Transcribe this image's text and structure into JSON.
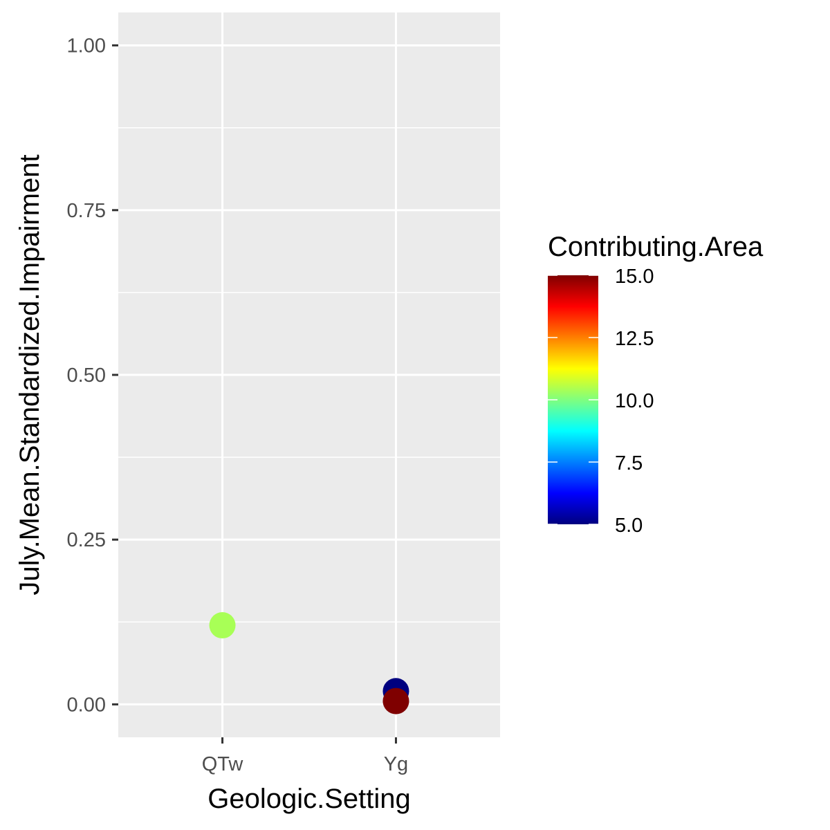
{
  "chart_data": {
    "type": "scatter",
    "xlabel": "Geologic.Setting",
    "ylabel": "July.Mean.Standardized.Impairment",
    "categories": [
      "QTw",
      "Yg"
    ],
    "ylim": [
      -0.05,
      1.05
    ],
    "y_ticks": [
      0.0,
      0.25,
      0.5,
      0.75,
      1.0
    ],
    "y_tick_labels": [
      "0.00",
      "0.25",
      "0.50",
      "0.75",
      "1.00"
    ],
    "grid": true,
    "points": [
      {
        "x": "QTw",
        "y": 0.12,
        "color_value": 10.4
      },
      {
        "x": "Yg",
        "y": 0.02,
        "color_value": 5.0
      },
      {
        "x": "Yg",
        "y": 0.005,
        "color_value": 15.0
      }
    ],
    "legend": {
      "title": "Contributing.Area",
      "placement": "right",
      "range": [
        5.0,
        15.0
      ],
      "ticks": [
        5.0,
        7.5,
        10.0,
        12.5,
        15.0
      ],
      "tick_labels": [
        "5.0",
        "7.5",
        "10.0",
        "12.5",
        "15.0"
      ],
      "colors": [
        "#00007F",
        "#0000FF",
        "#007FFF",
        "#00FFFF",
        "#7FFF7F",
        "#FFFF00",
        "#FF7F00",
        "#FF0000",
        "#7F0000"
      ]
    },
    "panel_background": "#EBEBEB",
    "grid_color": "#FFFFFF"
  }
}
